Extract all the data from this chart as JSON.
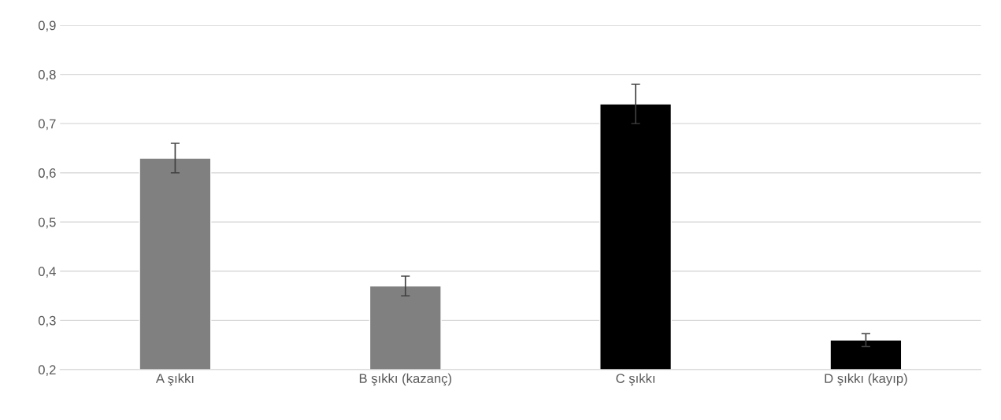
{
  "chart_data": {
    "type": "bar",
    "categories": [
      "A şıkkı",
      "B şıkkı (kazanç)",
      "C şıkkı",
      "D şıkkı (kayıp)"
    ],
    "values": [
      0.63,
      0.37,
      0.74,
      0.26
    ],
    "errors": [
      0.03,
      0.02,
      0.04,
      0.013
    ],
    "colors": [
      "#808080",
      "#808080",
      "#000000",
      "#000000"
    ],
    "ylim": [
      0.2,
      0.9
    ],
    "yticks": [
      {
        "value": 0.2,
        "label": "0,2"
      },
      {
        "value": 0.3,
        "label": "0,3"
      },
      {
        "value": 0.4,
        "label": "0,4"
      },
      {
        "value": 0.5,
        "label": "0,5"
      },
      {
        "value": 0.6,
        "label": "0,6"
      },
      {
        "value": 0.7,
        "label": "0,7"
      },
      {
        "value": 0.8,
        "label": "0,8"
      },
      {
        "value": 0.9,
        "label": "0,9"
      }
    ],
    "grid": "y",
    "legend": false
  }
}
